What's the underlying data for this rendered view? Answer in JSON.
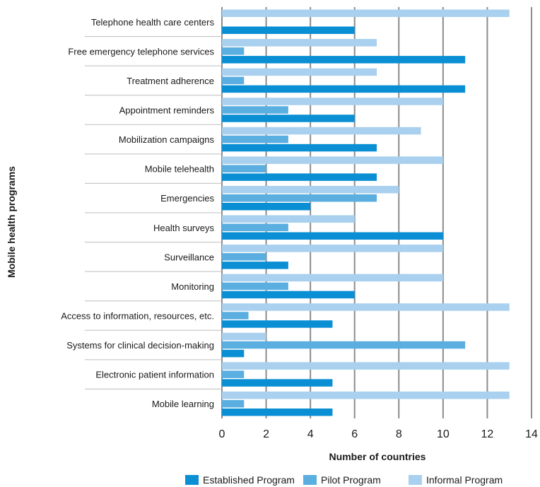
{
  "chart_data": {
    "type": "bar",
    "orientation": "horizontal",
    "title": "",
    "xlabel": "Number of countries",
    "ylabel": "Mobile health programs",
    "xlim": [
      0,
      14
    ],
    "xticks": [
      0,
      2,
      4,
      6,
      8,
      10,
      12,
      14
    ],
    "grid": "vertical",
    "legend_position": "bottom",
    "categories": [
      "Telephone health care centers",
      "Free emergency telephone services",
      "Treatment adherence",
      "Appointment reminders",
      "Mobilization campaigns",
      "Mobile telehealth",
      "Emergencies",
      "Health surveys",
      "Surveillance",
      "Monitoring",
      "Access to information, resources, etc.",
      "Systems for clinical decision-making",
      "Electronic patient information",
      "Mobile learning"
    ],
    "series": [
      {
        "name": "Informal Program",
        "color": "#a9d0ee",
        "values": [
          13,
          7,
          7,
          10,
          9,
          10,
          8,
          6,
          10,
          10,
          13,
          2,
          13,
          13
        ]
      },
      {
        "name": "Pilot Program",
        "color": "#5aaee0",
        "values": [
          0,
          1,
          1,
          3,
          3,
          2,
          7,
          3,
          2,
          3,
          1.2,
          11,
          1,
          1
        ]
      },
      {
        "name": "Established Program",
        "color": "#0a8fd4",
        "values": [
          6,
          11,
          11,
          6,
          7,
          7,
          4,
          10,
          3,
          6,
          5,
          1,
          5,
          5
        ]
      }
    ],
    "legend": [
      "Established Program",
      "Pilot Program",
      "Informal Program"
    ]
  }
}
